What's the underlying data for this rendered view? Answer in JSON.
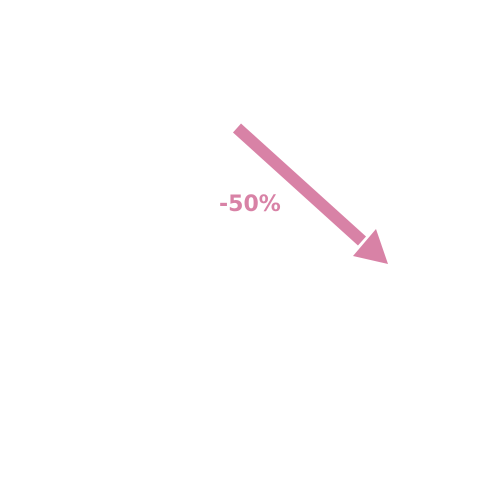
{
  "change_label": "-50%",
  "icon": "arrow-down-right-icon",
  "colors": {
    "accent": "#d882a6",
    "background": "#ffffff"
  }
}
